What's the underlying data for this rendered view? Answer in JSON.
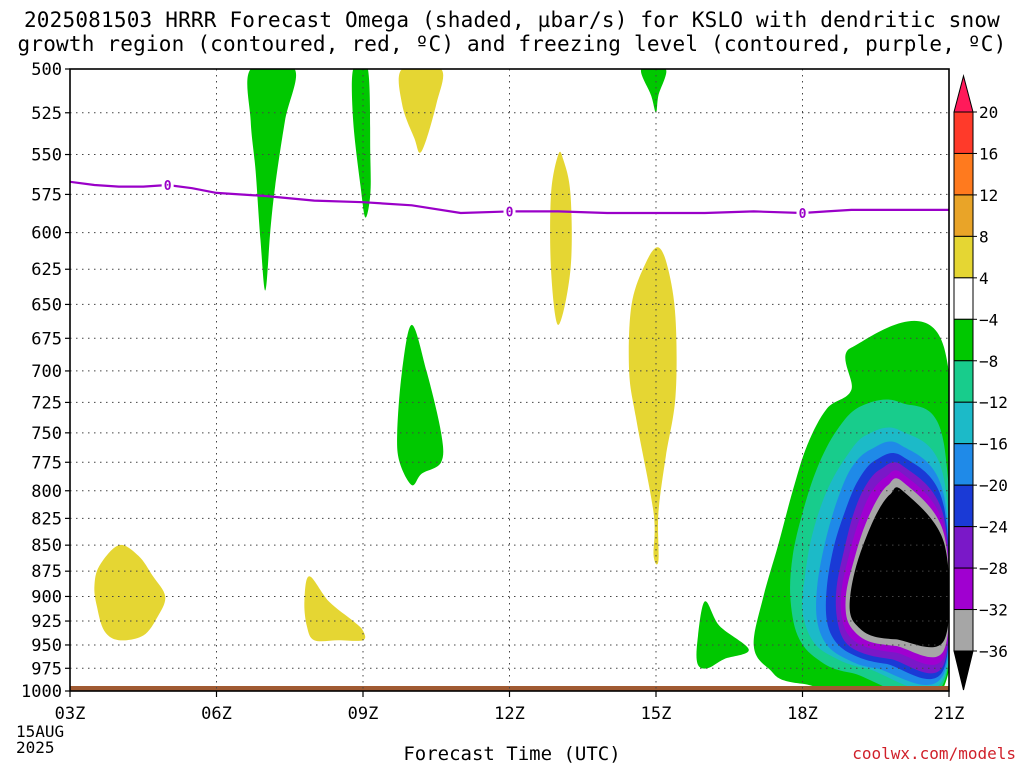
{
  "title_line1": "2025081503 HRRR Forecast Omega (shaded, µbar/s) for KSLO with dendritic snow",
  "title_line2": "growth region (contoured, red, ºC) and freezing level (contoured, purple, ºC)",
  "date_line1": "15AUG",
  "date_line2": "2025",
  "watermark": "coolwx.com/models",
  "chart_data": {
    "type": "heatmap",
    "title": "2025081503 HRRR Forecast Omega (shaded, µbar/s) for KSLO with dendritic snow growth region (contoured, red, ºC) and freezing level (contoured, purple, ºC)",
    "xlabel": "Forecast Time (UTC)",
    "ylabel": "",
    "x_ticks": [
      "03Z",
      "06Z",
      "09Z",
      "12Z",
      "15Z",
      "18Z",
      "21Z"
    ],
    "x_hours": [
      3,
      6,
      9,
      12,
      15,
      18,
      21
    ],
    "xlim": [
      3,
      21
    ],
    "y_ticks": [
      500,
      525,
      550,
      575,
      600,
      625,
      650,
      675,
      700,
      725,
      750,
      775,
      800,
      825,
      850,
      875,
      900,
      925,
      950,
      975,
      1000
    ],
    "ylim": [
      500,
      1000
    ],
    "y_log_pressure": true,
    "grid": true,
    "colorbar": {
      "labels": [
        "20",
        "16",
        "12",
        "8",
        "4",
        "−4",
        "−8",
        "−12",
        "−16",
        "−20",
        "−24",
        "−28",
        "−32",
        "−36"
      ],
      "colors": [
        "#ff1a5a",
        "#ff3a2a",
        "#ff7a1e",
        "#e9a428",
        "#e5d633",
        "#ffffff",
        "#00c800",
        "#18cc8c",
        "#1cbac8",
        "#1f8ae8",
        "#1a3ad6",
        "#7a18c8",
        "#a000d0",
        "#a6a6a6",
        "#000000"
      ]
    },
    "omega_regions": [
      {
        "level": "-8 to -4",
        "color": "#00c800",
        "points": [
          [
            6.7,
            500
          ],
          [
            7.6,
            500
          ],
          [
            7.4,
            530
          ],
          [
            7.2,
            570
          ],
          [
            7.1,
            600
          ],
          [
            7.0,
            640
          ],
          [
            6.9,
            605
          ],
          [
            6.8,
            560
          ],
          [
            6.7,
            530
          ]
        ]
      },
      {
        "level": "-8 to -4",
        "color": "#00c800",
        "points": [
          [
            8.8,
            500
          ],
          [
            9.1,
            500
          ],
          [
            9.15,
            550
          ],
          [
            9.15,
            575
          ],
          [
            9.05,
            590
          ],
          [
            8.95,
            570
          ],
          [
            8.8,
            530
          ]
        ]
      },
      {
        "level": "4 to 8",
        "color": "#e5d633",
        "points": [
          [
            9.8,
            500
          ],
          [
            10.6,
            500
          ],
          [
            10.5,
            520
          ],
          [
            10.2,
            548
          ],
          [
            10.05,
            540
          ],
          [
            9.8,
            520
          ]
        ]
      },
      {
        "level": "-8 to -4",
        "color": "#00c800",
        "points": [
          [
            14.7,
            500
          ],
          [
            15.2,
            500
          ],
          [
            15.05,
            515
          ],
          [
            15.0,
            525
          ],
          [
            14.9,
            515
          ]
        ]
      },
      {
        "level": "4 to 8",
        "color": "#e5d633",
        "points": [
          [
            13.0,
            550
          ],
          [
            13.1,
            553
          ],
          [
            13.25,
            575
          ],
          [
            13.25,
            625
          ],
          [
            13.0,
            665
          ],
          [
            12.85,
            625
          ],
          [
            12.85,
            575
          ]
        ]
      },
      {
        "level": "4 to 8",
        "color": "#e5d633",
        "points": [
          [
            15.05,
            610
          ],
          [
            15.25,
            625
          ],
          [
            15.4,
            660
          ],
          [
            15.4,
            720
          ],
          [
            15.2,
            770
          ],
          [
            15.05,
            820
          ],
          [
            15.05,
            865
          ],
          [
            14.95,
            860
          ],
          [
            14.95,
            820
          ],
          [
            14.6,
            740
          ],
          [
            14.45,
            700
          ],
          [
            14.5,
            650
          ],
          [
            14.8,
            620
          ]
        ]
      },
      {
        "level": "-8 to -4",
        "color": "#00c800",
        "points": [
          [
            10.0,
            665
          ],
          [
            10.3,
            700
          ],
          [
            10.6,
            750
          ],
          [
            10.6,
            775
          ],
          [
            10.2,
            785
          ],
          [
            10.0,
            795
          ],
          [
            9.75,
            775
          ],
          [
            9.7,
            750
          ],
          [
            9.8,
            700
          ]
        ]
      },
      {
        "level": "4 to 8",
        "color": "#e5d633",
        "points": [
          [
            3.6,
            870
          ],
          [
            4.0,
            850
          ],
          [
            4.4,
            860
          ],
          [
            4.7,
            880
          ],
          [
            4.95,
            900
          ],
          [
            4.8,
            920
          ],
          [
            4.5,
            940
          ],
          [
            4.0,
            945
          ],
          [
            3.7,
            935
          ],
          [
            3.55,
            910
          ],
          [
            3.5,
            890
          ]
        ]
      },
      {
        "level": "4 to 8",
        "color": "#e5d633",
        "points": [
          [
            7.9,
            880
          ],
          [
            8.3,
            905
          ],
          [
            8.8,
            925
          ],
          [
            9.0,
            935
          ],
          [
            9.0,
            945
          ],
          [
            8.5,
            945
          ],
          [
            8.0,
            945
          ],
          [
            7.85,
            930
          ],
          [
            7.8,
            905
          ]
        ]
      },
      {
        "level": "-8 to -4",
        "color": "#00c800",
        "points": [
          [
            16.0,
            905
          ],
          [
            16.3,
            930
          ],
          [
            16.9,
            955
          ],
          [
            16.4,
            965
          ],
          [
            16.05,
            975
          ],
          [
            15.85,
            970
          ],
          [
            15.85,
            945
          ]
        ]
      },
      {
        "level": "-8 to -4",
        "color": "#00c800",
        "points": [
          [
            20.9,
            682
          ],
          [
            19.0,
            682
          ],
          [
            19.0,
            715
          ],
          [
            18.5,
            730
          ],
          [
            18.1,
            760
          ],
          [
            17.8,
            800
          ],
          [
            17.5,
            850
          ],
          [
            17.2,
            900
          ],
          [
            17.0,
            950
          ],
          [
            17.3,
            975
          ],
          [
            18.0,
            992
          ],
          [
            20.9,
            995
          ]
        ]
      },
      {
        "level": "-12 to -8",
        "color": "#18cc8c",
        "points": [
          [
            20.0,
            725
          ],
          [
            19.2,
            728
          ],
          [
            18.7,
            748
          ],
          [
            18.3,
            780
          ],
          [
            18.0,
            820
          ],
          [
            17.8,
            860
          ],
          [
            17.75,
            900
          ],
          [
            17.9,
            940
          ],
          [
            18.3,
            965
          ],
          [
            19.0,
            980
          ],
          [
            20.9,
            990
          ],
          [
            20.9,
            760
          ]
        ]
      },
      {
        "level": "-16 to -12",
        "color": "#1cbac8",
        "points": [
          [
            20.0,
            748
          ],
          [
            19.3,
            752
          ],
          [
            18.9,
            770
          ],
          [
            18.5,
            800
          ],
          [
            18.2,
            840
          ],
          [
            18.05,
            880
          ],
          [
            18.0,
            915
          ],
          [
            18.2,
            945
          ],
          [
            18.6,
            962
          ],
          [
            19.3,
            975
          ],
          [
            20.9,
            985
          ],
          [
            20.9,
            790
          ]
        ]
      },
      {
        "level": "-20 to -16",
        "color": "#1f8ae8",
        "points": [
          [
            20.0,
            760
          ],
          [
            19.4,
            764
          ],
          [
            19.0,
            780
          ],
          [
            18.7,
            810
          ],
          [
            18.45,
            850
          ],
          [
            18.3,
            890
          ],
          [
            18.3,
            925
          ],
          [
            18.5,
            950
          ],
          [
            18.9,
            965
          ],
          [
            19.5,
            975
          ],
          [
            20.9,
            980
          ],
          [
            20.9,
            805
          ]
        ]
      },
      {
        "level": "-24 to -20",
        "color": "#1a3ad6",
        "points": [
          [
            20.05,
            770
          ],
          [
            19.5,
            773
          ],
          [
            19.15,
            790
          ],
          [
            18.9,
            815
          ],
          [
            18.65,
            850
          ],
          [
            18.5,
            890
          ],
          [
            18.5,
            925
          ],
          [
            18.7,
            948
          ],
          [
            19.1,
            962
          ],
          [
            19.7,
            970
          ],
          [
            20.9,
            975
          ],
          [
            20.9,
            815
          ]
        ]
      },
      {
        "level": "-28 to -24",
        "color": "#7a18c8",
        "points": [
          [
            20.05,
            778
          ],
          [
            19.6,
            781
          ],
          [
            19.3,
            795
          ],
          [
            19.05,
            820
          ],
          [
            18.85,
            855
          ],
          [
            18.7,
            890
          ],
          [
            18.7,
            920
          ],
          [
            18.85,
            945
          ],
          [
            19.2,
            958
          ],
          [
            19.8,
            965
          ],
          [
            20.9,
            970
          ],
          [
            20.9,
            825
          ]
        ]
      },
      {
        "level": "-32 to -28",
        "color": "#a000d0",
        "points": [
          [
            20.05,
            785
          ],
          [
            19.7,
            788
          ],
          [
            19.4,
            802
          ],
          [
            19.15,
            828
          ],
          [
            18.95,
            860
          ],
          [
            18.8,
            893
          ],
          [
            18.8,
            920
          ],
          [
            18.95,
            940
          ],
          [
            19.3,
            952
          ],
          [
            19.9,
            958
          ],
          [
            20.9,
            962
          ],
          [
            20.9,
            833
          ]
        ]
      },
      {
        "level": "-36 to -32",
        "color": "#a6a6a6",
        "points": [
          [
            20.05,
            792
          ],
          [
            19.75,
            795
          ],
          [
            19.5,
            810
          ],
          [
            19.25,
            835
          ],
          [
            19.05,
            865
          ],
          [
            18.9,
            895
          ],
          [
            18.9,
            920
          ],
          [
            19.05,
            935
          ],
          [
            19.35,
            946
          ],
          [
            19.9,
            951
          ],
          [
            20.9,
            955
          ],
          [
            20.9,
            840
          ]
        ]
      },
      {
        "level": "< -36",
        "color": "#000000",
        "points": [
          [
            20.05,
            800
          ],
          [
            19.8,
            803
          ],
          [
            19.55,
            818
          ],
          [
            19.3,
            843
          ],
          [
            19.1,
            870
          ],
          [
            18.98,
            898
          ],
          [
            18.98,
            918
          ],
          [
            19.12,
            930
          ],
          [
            19.4,
            940
          ],
          [
            19.9,
            944
          ],
          [
            20.9,
            945
          ],
          [
            20.9,
            848
          ]
        ]
      }
    ],
    "freezing_level": {
      "color": "#9a00c8",
      "label": "0",
      "hours": [
        3.0,
        3.5,
        4.0,
        4.5,
        5.0,
        5.5,
        6.0,
        7.0,
        8.0,
        9.0,
        10.0,
        11.0,
        12.0,
        13.0,
        14.0,
        15.0,
        16.0,
        17.0,
        18.0,
        18.5,
        19.0,
        20.0,
        21.0
      ],
      "pressure": [
        567,
        569,
        570,
        570,
        569,
        571,
        574,
        576,
        579,
        580,
        582,
        587,
        586,
        586,
        587,
        587,
        587,
        586,
        587,
        586,
        585,
        585,
        585
      ],
      "label_hours": [
        5.0,
        12.0,
        18.0
      ]
    },
    "ground": {
      "color": "#a05a32",
      "pressure": 1000
    }
  },
  "x_axis_title": "Forecast Time (UTC)"
}
